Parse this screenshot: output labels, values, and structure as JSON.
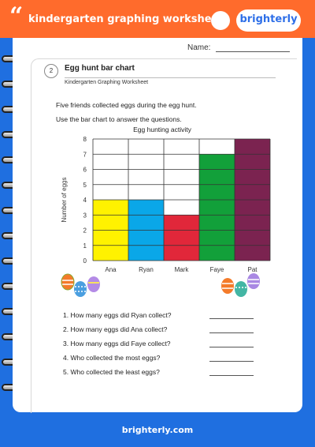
{
  "header": {
    "quote_mark": "“",
    "title": "kindergarten graphing worksheets",
    "logo": "brighterly"
  },
  "worksheet": {
    "name_label": "Name:",
    "number": "2",
    "title": "Egg hunt bar chart",
    "subtitle": "Kindergarten Graphing Worksheet",
    "intro": [
      "Five friends collected eggs during the egg hunt.",
      "Use the bar chart to answer the questions."
    ]
  },
  "chart_data": {
    "type": "bar",
    "title": "Egg hunting activity",
    "ylabel": "Number of eggs",
    "xlabel": "",
    "categories": [
      "Ana",
      "Ryan",
      "Mark",
      "Faye",
      "Pat"
    ],
    "values": [
      4,
      4,
      3,
      7,
      8
    ],
    "colors": [
      "#fff200",
      "#0aa7e8",
      "#e1273a",
      "#12a03a",
      "#7b2350"
    ],
    "ylim": [
      0,
      8
    ],
    "yticks": [
      "0",
      "1",
      "2",
      "3",
      "4",
      "5",
      "6",
      "7",
      "8"
    ],
    "grid": true
  },
  "questions": [
    "1.  How many eggs did Ryan collect?",
    "2. How many eggs did Ana collect?",
    "3. How many eggs did Faye collect?",
    "4. Who collected the most eggs?",
    "5. Who collected the least eggs?"
  ],
  "footer": "brighterly.com",
  "icons": {
    "eggs_left": "easter-eggs-icon",
    "eggs_right": "easter-eggs-icon"
  }
}
